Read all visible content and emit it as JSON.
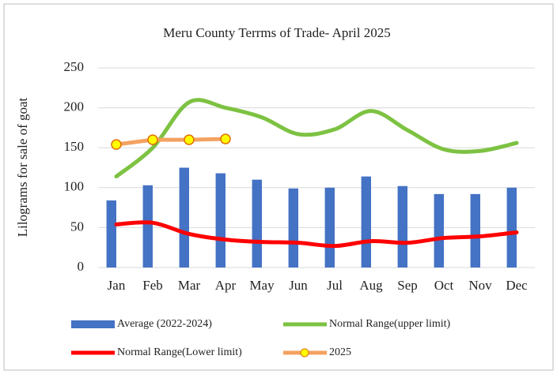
{
  "chart_data": {
    "type": "bar_line",
    "title": "Meru County Terrms of Trade- April    2025",
    "y_label": "Lilograms for sale of goat",
    "categories": [
      "Jan",
      "Feb",
      "Mar",
      "Apr",
      "May",
      "Jun",
      "Jul",
      "Aug",
      "Sep",
      "Oct",
      "Nov",
      "Dec"
    ],
    "series": [
      {
        "name": "Average (2022-2024)",
        "type": "bar",
        "color": "#4472c4",
        "values": [
          84,
          103,
          125,
          118,
          110,
          99,
          100,
          114,
          102,
          92,
          92,
          100
        ]
      },
      {
        "name": "Normal Range(upper limit)",
        "type": "line",
        "smooth": true,
        "color": "#7dc242",
        "values": [
          114,
          150,
          207,
          200,
          188,
          167,
          173,
          196,
          172,
          148,
          146,
          156
        ]
      },
      {
        "name": "Normal Range(Lower limit)",
        "type": "line",
        "smooth": true,
        "color": "#ff0000",
        "values": [
          54,
          56,
          42,
          35,
          32,
          31,
          27,
          33,
          31,
          37,
          39,
          44
        ]
      },
      {
        "name": "2025",
        "type": "line",
        "markers": true,
        "color": "#f4a261",
        "marker_color": "#ffff00",
        "values": [
          154,
          160,
          160,
          161,
          null,
          null,
          null,
          null,
          null,
          null,
          null,
          null
        ]
      }
    ],
    "ylim": [
      0,
      250
    ],
    "yticks": [
      0,
      50,
      100,
      150,
      200,
      250
    ],
    "grid": true
  }
}
